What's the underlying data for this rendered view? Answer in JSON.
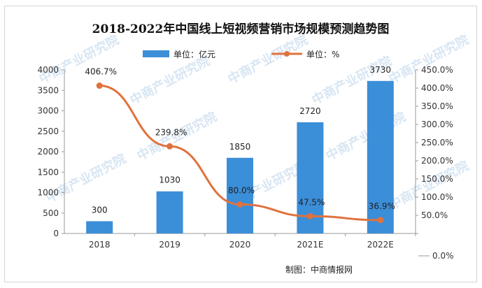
{
  "chart_data": {
    "type": "bar",
    "title": "2018-2022年中国线上短视频营销市场规模预测趋势图",
    "categories": [
      "2018",
      "2019",
      "2020",
      "2021E",
      "2022E"
    ],
    "series": [
      {
        "name": "单位：亿元",
        "type": "bar",
        "axis": "left",
        "color": "#3b8ed8",
        "values": [
          300,
          1030,
          1850,
          2720,
          3730
        ],
        "labels": [
          "300",
          "1030",
          "1850",
          "2720",
          "3730"
        ]
      },
      {
        "name": "单位：%",
        "type": "line",
        "axis": "right",
        "color": "#e0723e",
        "values": [
          406.7,
          239.8,
          80.0,
          47.5,
          36.9
        ],
        "labels": [
          "406.7%",
          "239.8%",
          "80.0%",
          "47.5%",
          "36.9%"
        ]
      }
    ],
    "y_left": {
      "ylim": [
        0,
        4000
      ],
      "ticks": [
        "0",
        "500",
        "1000",
        "1500",
        "2000",
        "2500",
        "3000",
        "3500",
        "4000"
      ]
    },
    "y_right": {
      "ylim": [
        0,
        450
      ],
      "ticks": [
        "0.0%",
        "50.0%",
        "100.0%",
        "150.0%",
        "200.0%",
        "250.0%",
        "300.0%",
        "350.0%",
        "400.0%",
        "450.0%"
      ]
    },
    "legend_position": "top",
    "grid": false
  },
  "source": "制图：中商情报网",
  "watermark": "中商产业研究院",
  "corner_legend": "0.0%"
}
